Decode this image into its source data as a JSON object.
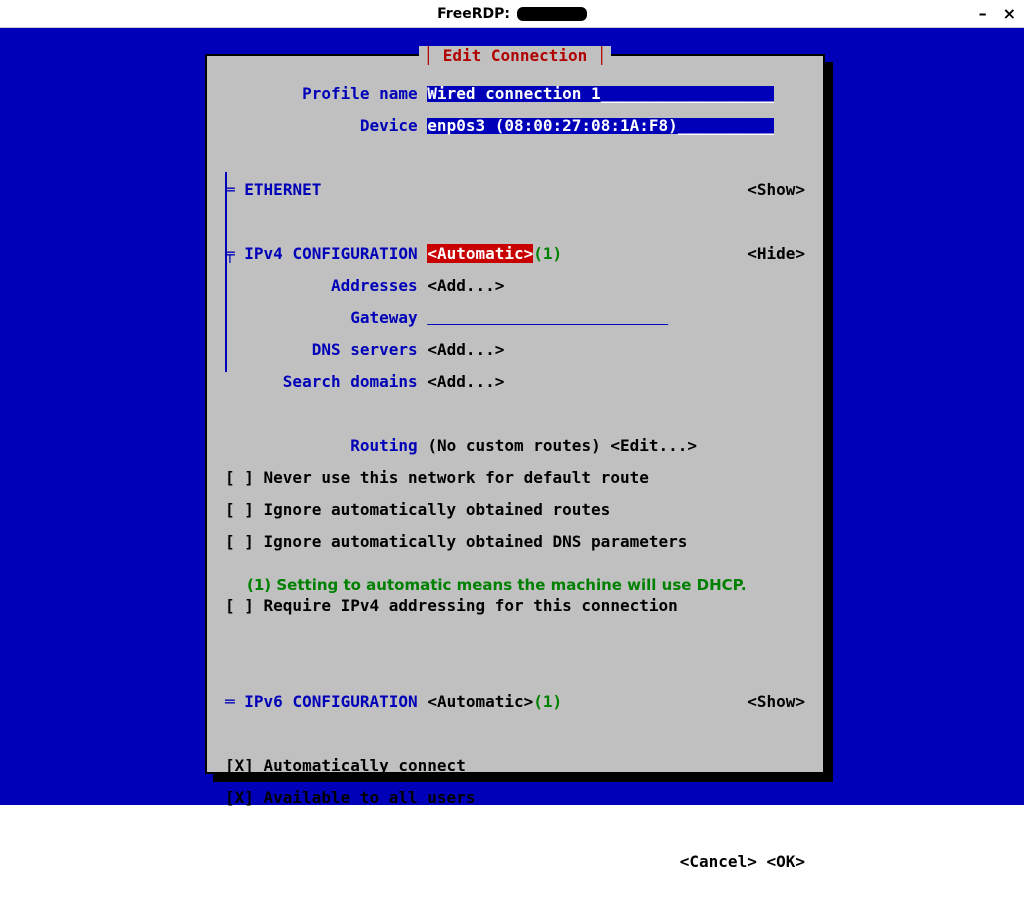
{
  "window": {
    "title_prefix": "FreeRDP: "
  },
  "dialog": {
    "title": "│ Edit Connection │"
  },
  "profile": {
    "name_label": "Profile name",
    "name_value": "Wired connection 1",
    "device_label": "Device",
    "device_value": "enp0s3 (08:00:27:08:1A:F8)"
  },
  "ethernet": {
    "prefix": "═",
    "label": "ETHERNET",
    "toggle": "<Show>"
  },
  "ipv4": {
    "tree": "╤",
    "label": "IPv4 CONFIGURATION",
    "mode": "<Automatic>",
    "note": "(1)",
    "toggle": "<Hide>",
    "addresses_label": "Addresses",
    "addresses_action": "<Add...>",
    "gateway_label": "Gateway",
    "dns_label": "DNS servers",
    "dns_action": "<Add...>",
    "search_label": "Search domains",
    "search_action": "<Add...>",
    "routing_label": "Routing",
    "routing_value": "(No custom routes)",
    "routing_action": "<Edit...>",
    "cb_never_default": "[ ] Never use this network for default route",
    "cb_ignore_routes": "[ ] Ignore automatically obtained routes",
    "cb_ignore_dns": "[ ] Ignore automatically obtained DNS parameters",
    "cb_require": "[ ] Require IPv4 addressing for this connection"
  },
  "ipv6": {
    "prefix": "═",
    "label": "IPv6 CONFIGURATION",
    "mode": "<Automatic>",
    "note": "(1)",
    "toggle": "<Show>"
  },
  "general": {
    "cb_autoconnect": "[X] Automatically connect",
    "cb_allusers": "[X] Available to all users"
  },
  "buttons": {
    "cancel": "<Cancel>",
    "ok": "<OK>"
  },
  "footnote": {
    "marker": "(1)",
    "text": " Setting to automatic means the machine will use DHCP."
  },
  "colors": {
    "desktop_bg": "#0000b8",
    "panel_bg": "#c0c0c0",
    "label_blue": "#0000b8",
    "highlight_red": "#c80000",
    "green": "#008000",
    "title_red": "#b00000"
  }
}
